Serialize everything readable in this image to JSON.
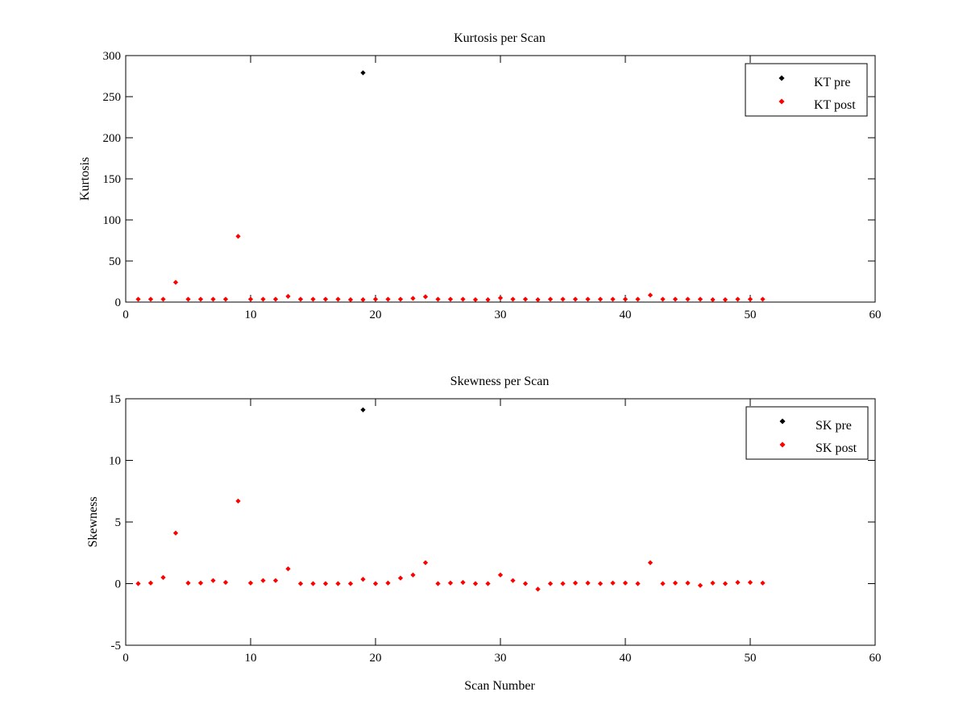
{
  "chart_data": [
    {
      "type": "scatter",
      "title": "Kurtosis per Scan",
      "xlabel": "",
      "ylabel": "Kurtosis",
      "xlim": [
        0,
        60
      ],
      "ylim": [
        0,
        300
      ],
      "xticks": [
        "0",
        "10",
        "20",
        "30",
        "40",
        "50",
        "60"
      ],
      "yticks": [
        "0",
        "50",
        "100",
        "150",
        "200",
        "250",
        "300"
      ],
      "legend_position": "top-right",
      "grid": false,
      "series": [
        {
          "name": "KT pre",
          "color": "#000000",
          "points": [
            [
              19,
              279
            ]
          ]
        },
        {
          "name": "KT post",
          "color": "#ff0000",
          "points": [
            [
              1,
              3.5
            ],
            [
              2,
              3.5
            ],
            [
              3,
              3.5
            ],
            [
              4,
              24
            ],
            [
              5,
              3.5
            ],
            [
              6,
              3.5
            ],
            [
              7,
              3.5
            ],
            [
              8,
              3.5
            ],
            [
              9,
              80
            ],
            [
              10,
              3.5
            ],
            [
              11,
              3.5
            ],
            [
              12,
              3.5
            ],
            [
              13,
              7
            ],
            [
              14,
              3.5
            ],
            [
              15,
              3.5
            ],
            [
              16,
              3.5
            ],
            [
              17,
              3.5
            ],
            [
              18,
              3
            ],
            [
              19,
              3
            ],
            [
              20,
              3.5
            ],
            [
              21,
              3.5
            ],
            [
              22,
              3.5
            ],
            [
              23,
              4.5
            ],
            [
              24,
              6.5
            ],
            [
              25,
              3.5
            ],
            [
              26,
              3.5
            ],
            [
              27,
              3.5
            ],
            [
              28,
              3
            ],
            [
              29,
              3
            ],
            [
              30,
              5
            ],
            [
              31,
              3.5
            ],
            [
              32,
              3.5
            ],
            [
              33,
              3
            ],
            [
              34,
              3.5
            ],
            [
              35,
              3.5
            ],
            [
              36,
              3.5
            ],
            [
              37,
              3.5
            ],
            [
              38,
              3.5
            ],
            [
              39,
              3.5
            ],
            [
              40,
              3.5
            ],
            [
              41,
              3.5
            ],
            [
              42,
              8.5
            ],
            [
              43,
              3.5
            ],
            [
              44,
              3.5
            ],
            [
              45,
              3.5
            ],
            [
              46,
              3.5
            ],
            [
              47,
              3
            ],
            [
              48,
              3
            ],
            [
              49,
              3.5
            ],
            [
              50,
              3.5
            ],
            [
              51,
              3.5
            ]
          ]
        }
      ]
    },
    {
      "type": "scatter",
      "title": "Skewness per Scan",
      "xlabel": "Scan Number",
      "ylabel": "Skewness",
      "xlim": [
        0,
        60
      ],
      "ylim": [
        -5,
        15
      ],
      "xticks": [
        "0",
        "10",
        "20",
        "30",
        "40",
        "50",
        "60"
      ],
      "yticks": [
        "-5",
        "0",
        "5",
        "10",
        "15"
      ],
      "legend_position": "top-right",
      "grid": false,
      "series": [
        {
          "name": "SK pre",
          "color": "#000000",
          "points": [
            [
              19,
              14.1
            ]
          ]
        },
        {
          "name": "SK post",
          "color": "#ff0000",
          "points": [
            [
              1,
              0.0
            ],
            [
              2,
              0.05
            ],
            [
              3,
              0.5
            ],
            [
              4,
              4.1
            ],
            [
              5,
              0.05
            ],
            [
              6,
              0.05
            ],
            [
              7,
              0.25
            ],
            [
              8,
              0.1
            ],
            [
              9,
              6.7
            ],
            [
              10,
              0.05
            ],
            [
              11,
              0.25
            ],
            [
              12,
              0.25
            ],
            [
              13,
              1.2
            ],
            [
              14,
              0.0
            ],
            [
              15,
              0.0
            ],
            [
              16,
              0.0
            ],
            [
              17,
              0.0
            ],
            [
              18,
              0.0
            ],
            [
              19,
              0.35
            ],
            [
              20,
              0.0
            ],
            [
              21,
              0.05
            ],
            [
              22,
              0.45
            ],
            [
              23,
              0.7
            ],
            [
              24,
              1.7
            ],
            [
              25,
              0.0
            ],
            [
              26,
              0.05
            ],
            [
              27,
              0.1
            ],
            [
              28,
              0.0
            ],
            [
              29,
              0.0
            ],
            [
              30,
              0.7
            ],
            [
              31,
              0.25
            ],
            [
              32,
              0.0
            ],
            [
              33,
              -0.45
            ],
            [
              34,
              0.0
            ],
            [
              35,
              0.0
            ],
            [
              36,
              0.05
            ],
            [
              37,
              0.05
            ],
            [
              38,
              0.0
            ],
            [
              39,
              0.05
            ],
            [
              40,
              0.05
            ],
            [
              41,
              0.0
            ],
            [
              42,
              1.7
            ],
            [
              43,
              0.0
            ],
            [
              44,
              0.05
            ],
            [
              45,
              0.05
            ],
            [
              46,
              -0.15
            ],
            [
              47,
              0.05
            ],
            [
              48,
              0.0
            ],
            [
              49,
              0.1
            ],
            [
              50,
              0.1
            ],
            [
              51,
              0.05
            ]
          ]
        }
      ]
    }
  ]
}
